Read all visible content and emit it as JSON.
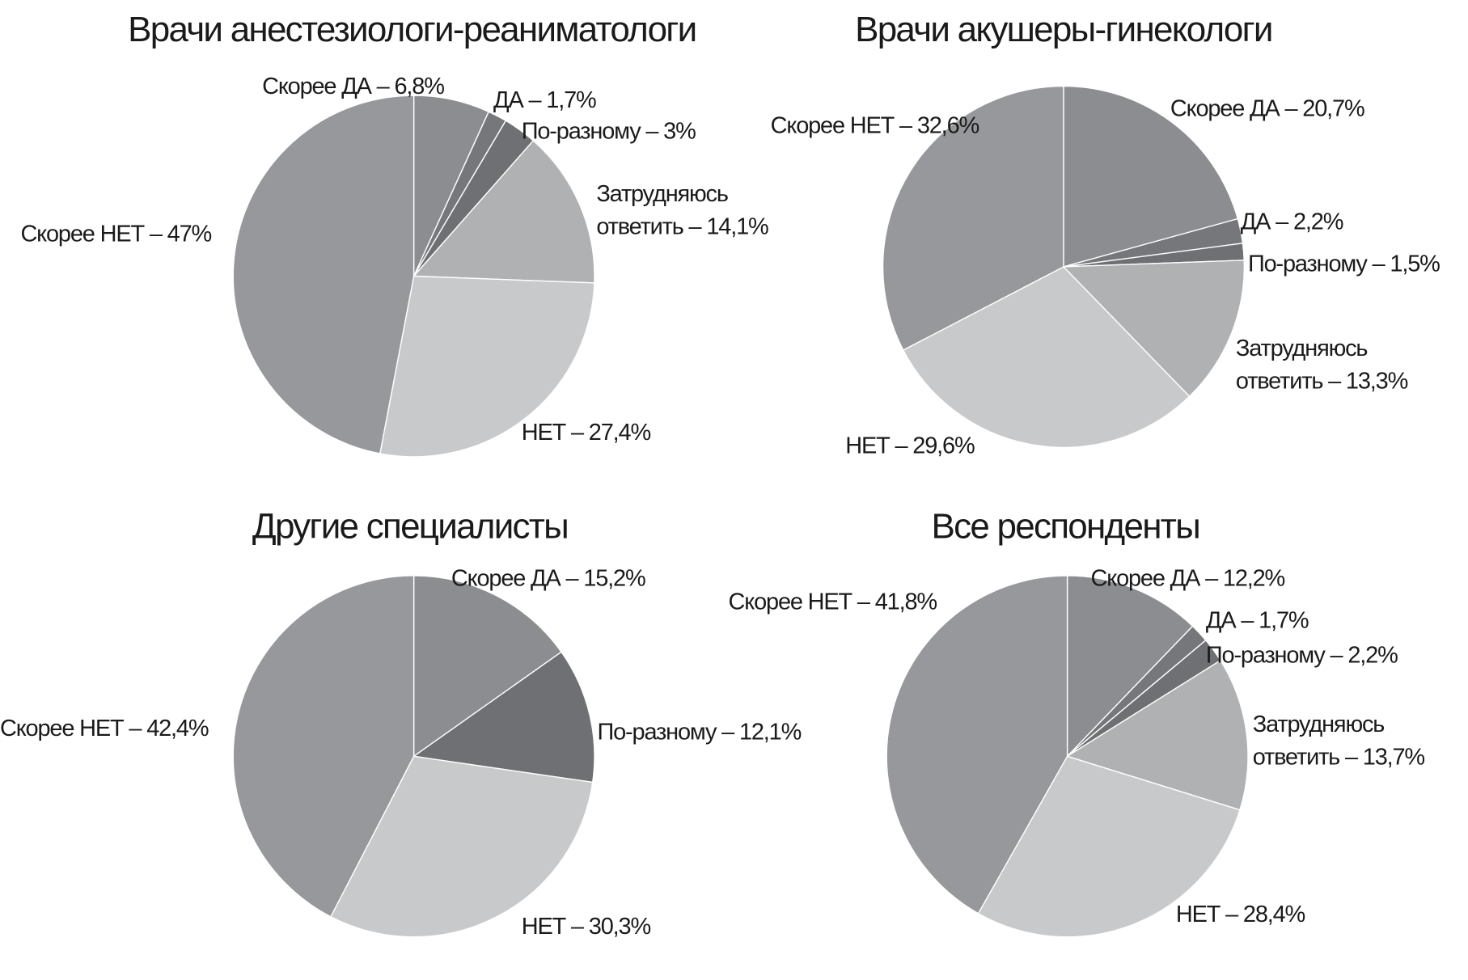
{
  "chart_data": [
    {
      "type": "pie",
      "title": "Врачи анестезиологи-реаниматологи",
      "slices": [
        {
          "category": "Скорее ДА",
          "value": 6.8,
          "label": "Скорее ДА – 6,8%",
          "color": "#8c8d90"
        },
        {
          "category": "ДА",
          "value": 1.7,
          "label": "ДА – 1,7%",
          "color": "#76777a"
        },
        {
          "category": "По-разному",
          "value": 3,
          "label": "По-разному – 3%",
          "color": "#6f7073"
        },
        {
          "category": "Затрудняюсь ответить",
          "value": 14.1,
          "label": [
            "Затрудняюсь",
            "ответить – 14,1%"
          ],
          "color": "#b0b1b3"
        },
        {
          "category": "НЕТ",
          "value": 27.4,
          "label": "НЕТ – 27,4%",
          "color": "#c8c9cb"
        },
        {
          "category": "Скорее НЕТ",
          "value": 47,
          "label": "Скорее НЕТ – 47%",
          "color": "#97989b"
        }
      ]
    },
    {
      "type": "pie",
      "title": "Врачи акушеры-гинекологи",
      "slices": [
        {
          "category": "Скорее ДА",
          "value": 20.7,
          "label": "Скорее ДА – 20,7%",
          "color": "#8c8d90"
        },
        {
          "category": "ДА",
          "value": 2.2,
          "label": "ДА – 2,2%",
          "color": "#76777a"
        },
        {
          "category": "По-разному",
          "value": 1.5,
          "label": "По-разному – 1,5%",
          "color": "#6f7073"
        },
        {
          "category": "Затрудняюсь ответить",
          "value": 13.3,
          "label": [
            "Затрудняюсь",
            "ответить – 13,3%"
          ],
          "color": "#b0b1b3"
        },
        {
          "category": "НЕТ",
          "value": 29.6,
          "label": "НЕТ – 29,6%",
          "color": "#c8c9cb"
        },
        {
          "category": "Скорее НЕТ",
          "value": 32.6,
          "label": "Скорее НЕТ – 32,6%",
          "color": "#97989b"
        }
      ]
    },
    {
      "type": "pie",
      "title": "Другие специалисты",
      "slices": [
        {
          "category": "Скорее ДА",
          "value": 15.2,
          "label": "Скорее ДА – 15,2%",
          "color": "#8c8d90"
        },
        {
          "category": "По-разному",
          "value": 12.1,
          "label": "По-разному – 12,1%",
          "color": "#6f7073"
        },
        {
          "category": "НЕТ",
          "value": 30.3,
          "label": "НЕТ – 30,3%",
          "color": "#c8c9cb"
        },
        {
          "category": "Скорее НЕТ",
          "value": 42.4,
          "label": "Скорее НЕТ – 42,4%",
          "color": "#97989b"
        }
      ]
    },
    {
      "type": "pie",
      "title": "Все респонденты",
      "slices": [
        {
          "category": "Скорее ДА",
          "value": 12.2,
          "label": "Скорее ДА – 12,2%",
          "color": "#8c8d90"
        },
        {
          "category": "ДА",
          "value": 1.7,
          "label": "ДА – 1,7%",
          "color": "#76777a"
        },
        {
          "category": "По-разному",
          "value": 2.2,
          "label": "По-разному – 2,2%",
          "color": "#6f7073"
        },
        {
          "category": "Затрудняюсь ответить",
          "value": 13.7,
          "label": [
            "Затрудняюсь",
            "ответить – 13,7%"
          ],
          "color": "#b0b1b3"
        },
        {
          "category": "НЕТ",
          "value": 28.4,
          "label": "НЕТ – 28,4%",
          "color": "#c8c9cb"
        },
        {
          "category": "Скорее НЕТ",
          "value": 41.8,
          "label": "Скорее НЕТ – 41,8%",
          "color": "#97989b"
        }
      ]
    }
  ]
}
